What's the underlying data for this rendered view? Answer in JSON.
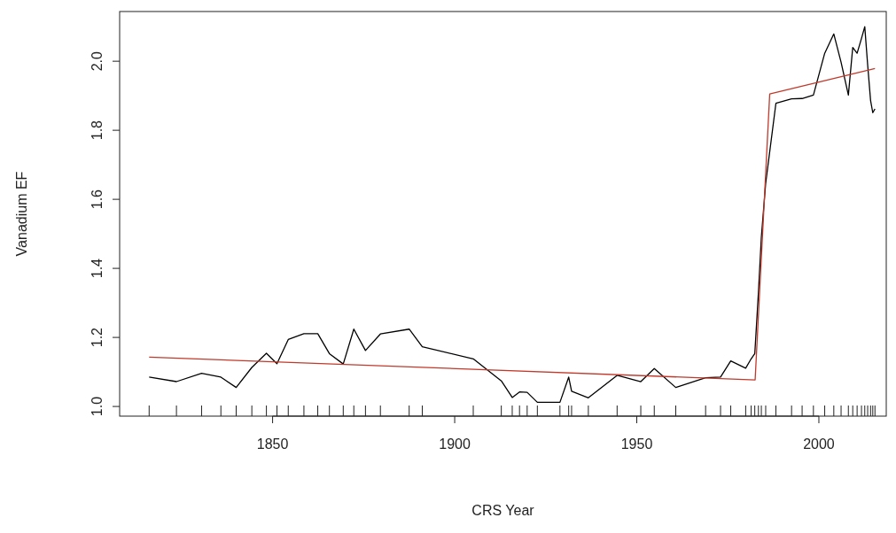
{
  "chart_data": {
    "type": "line",
    "xlabel": "CRS Year",
    "ylabel": "Vanadium EF",
    "xlim": [
      1808,
      2018.5
    ],
    "ylim": [
      0.972,
      2.144
    ],
    "xticks": [
      1850,
      1900,
      1950,
      2000
    ],
    "yticks": [
      {
        "value": 1,
        "label": "1.0"
      },
      {
        "value": 1.2,
        "label": "1.2"
      },
      {
        "value": 1.4,
        "label": "1.4"
      },
      {
        "value": 1.6,
        "label": "1.6"
      },
      {
        "value": 1.8,
        "label": "1.8"
      },
      {
        "value": 2,
        "label": "2.0"
      }
    ],
    "grid": false,
    "marker": "none",
    "line_style": "solid",
    "series": [
      {
        "color": "#000000",
        "x": [
          1816.1,
          1823.6,
          1830.5,
          1835.8,
          1840.0,
          1844.3,
          1848.3,
          1851.2,
          1854.3,
          1858.6,
          1862.4,
          1865.6,
          1869.4,
          1872.3,
          1875.5,
          1879.6,
          1887.5,
          1891.1,
          1905.1,
          1912.8,
          1915.8,
          1917.8,
          1919.9,
          1922.7,
          1928.9,
          1931.3,
          1932.1,
          1936.7,
          1944.6,
          1951.1,
          1954.8,
          1960.7,
          1968.9,
          1973.0,
          1975.8,
          1979.9,
          1981.4,
          1982.4,
          1983.4,
          1984.2,
          1985.4,
          1988.2,
          1992.5,
          1995.4,
          1998.5,
          2001.6,
          2004.1,
          2006.1,
          2008.1,
          2009.3,
          2010.5,
          2011.7,
          2012.6,
          2013.4,
          2014.2,
          2014.8,
          2015.4
        ],
        "values": [
          1.085,
          1.072,
          1.096,
          1.085,
          1.055,
          1.113,
          1.154,
          1.124,
          1.194,
          1.211,
          1.211,
          1.153,
          1.123,
          1.224,
          1.162,
          1.21,
          1.224,
          1.173,
          1.138,
          1.074,
          1.026,
          1.042,
          1.041,
          1.012,
          1.012,
          1.085,
          1.044,
          1.025,
          1.09,
          1.072,
          1.11,
          1.055,
          1.083,
          1.085,
          1.132,
          1.111,
          1.138,
          1.153,
          1.33,
          1.49,
          1.647,
          1.878,
          1.891,
          1.892,
          1.902,
          2.023,
          2.079,
          1.997,
          1.902,
          2.04,
          2.023,
          2.066,
          2.1,
          1.989,
          1.886,
          1.851,
          1.862
        ]
      },
      {
        "color": "#c0392b",
        "x": [
          1816.1,
          1982.5,
          1986.5,
          2015.4
        ],
        "values": [
          1.143,
          1.077,
          1.905,
          1.979
        ]
      }
    ]
  }
}
